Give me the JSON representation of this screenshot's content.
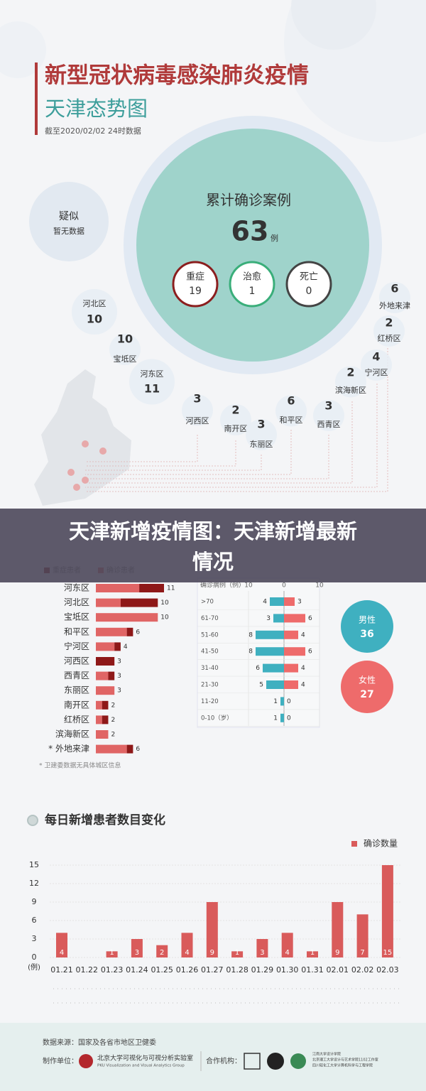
{
  "header": {
    "title": "新型冠状病毒感染肺炎疫情",
    "subtitle": "天津态势图",
    "date": "截至2020/02/02 24时数据"
  },
  "overview": {
    "title": "累计确诊案例",
    "total": 63,
    "unit": "例",
    "suspected": {
      "label": "疑似",
      "text": "暂无数据"
    },
    "status": [
      {
        "label": "重症",
        "value": 19,
        "color": "#8b1e1e"
      },
      {
        "label": "治愈",
        "value": 1,
        "color": "#3aae7a"
      },
      {
        "label": "死亡",
        "value": 0,
        "color": "#444444"
      }
    ]
  },
  "districts": [
    {
      "name": "河北区",
      "value": 10
    },
    {
      "name": "宝坻区",
      "value": 10
    },
    {
      "name": "河东区",
      "value": 11
    },
    {
      "name": "河西区",
      "value": 3
    },
    {
      "name": "南开区",
      "value": 2
    },
    {
      "name": "东丽区",
      "value": 3
    },
    {
      "name": "和平区",
      "value": 6
    },
    {
      "name": "西青区",
      "value": 3
    },
    {
      "name": "滨海新区",
      "value": 2
    },
    {
      "name": "宁河区",
      "value": 4
    },
    {
      "name": "红桥区",
      "value": 2
    },
    {
      "name": "外地来津",
      "value": 6
    }
  ],
  "banner": [
    "天津新增疫情图：天津新增最新",
    "情况"
  ],
  "chart_data": [
    {
      "type": "stackedbar",
      "categories": [
        "河东区",
        "河北区",
        "宝坻区",
        "和平区",
        "宁河区",
        "河西区",
        "西青区",
        "东丽区",
        "南开区",
        "红桥区",
        "滨海新区",
        "* 外地来津"
      ],
      "series": [
        {
          "name": "重症患者",
          "color": "#8e1818",
          "values": [
            4,
            6,
            0,
            1,
            1,
            3,
            1,
            0,
            1,
            1,
            0,
            1
          ]
        },
        {
          "name": "确诊患者",
          "color": "#e06565",
          "values": [
            7,
            4,
            10,
            5,
            3,
            0,
            2,
            3,
            1,
            1,
            2,
            5
          ]
        }
      ],
      "totals": [
        11,
        10,
        10,
        6,
        4,
        3,
        3,
        3,
        2,
        2,
        2,
        6
      ],
      "note": "* 卫建委数据无具体城区信息"
    },
    {
      "type": "pyramid",
      "title": "确诊病例（例）",
      "categories": [
        ">70",
        "61-70",
        "51-60",
        "41-50",
        "31-40",
        "21-30",
        "11-20",
        "0-10（岁）"
      ],
      "series": [
        {
          "name": "男性",
          "color": "#3fb0c0",
          "values": [
            4,
            3,
            8,
            8,
            6,
            5,
            1,
            1
          ],
          "total": 36
        },
        {
          "name": "女性",
          "color": "#ee6b6b",
          "values": [
            3,
            6,
            4,
            6,
            4,
            4,
            0,
            0
          ],
          "total": 27
        }
      ],
      "xlim": [
        -10,
        10
      ],
      "xticks": [
        {
          "value": -10,
          "label": "10"
        },
        0,
        10
      ]
    },
    {
      "type": "bar",
      "title": "每日新增患者数目变化",
      "categories": [
        "01.21",
        "01.22",
        "01.23",
        "01.24",
        "01.25",
        "01.26",
        "01.27",
        "01.28",
        "01.29",
        "01.30",
        "01.31",
        "02.01",
        "02.02",
        "02.03"
      ],
      "series": [
        {
          "name": "确诊数量",
          "color": "#d95b5b",
          "values": [
            4,
            0,
            1,
            3,
            2,
            4,
            9,
            1,
            3,
            4,
            1,
            9,
            7,
            15
          ]
        }
      ],
      "ylim": [
        0,
        15
      ],
      "yticks": [
        0,
        3,
        6,
        9,
        12,
        15
      ],
      "y_unit": "(例)",
      "grid": true
    }
  ],
  "footer": {
    "source": "数据来源：国家及各省市地区卫健委",
    "maker_label": "制作单位：",
    "maker": "北京大学可视化与可视分析实验室",
    "maker_en": "PKU Visualization and Visual Analytics Group",
    "partner_label": "合作机构：",
    "partners": [
      "江南大学设计学院",
      "北京理工大学设计与艺术学院1102工作室",
      "四川轻化工大学计算机科学与工程学院"
    ]
  }
}
